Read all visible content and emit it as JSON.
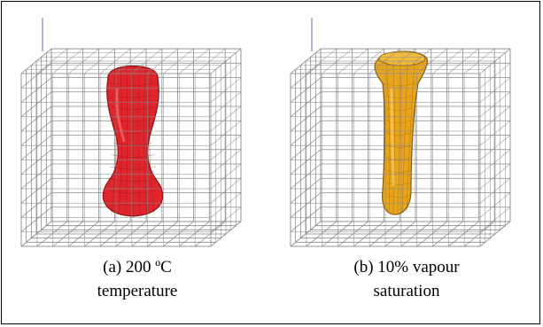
{
  "panels": [
    {
      "caption_line1": "(a) 200 ºC",
      "caption_line2": "temperature",
      "shape": "bulb",
      "fill_color": "#e0262c",
      "stroke_color": "#8e0f14"
    },
    {
      "caption_line1": "(b) 10% vapour",
      "caption_line2": "saturation",
      "shape": "cone",
      "fill_color": "#e8a51c",
      "stroke_color": "#8a5a08"
    }
  ],
  "grid_color": "#8a8a8a"
}
